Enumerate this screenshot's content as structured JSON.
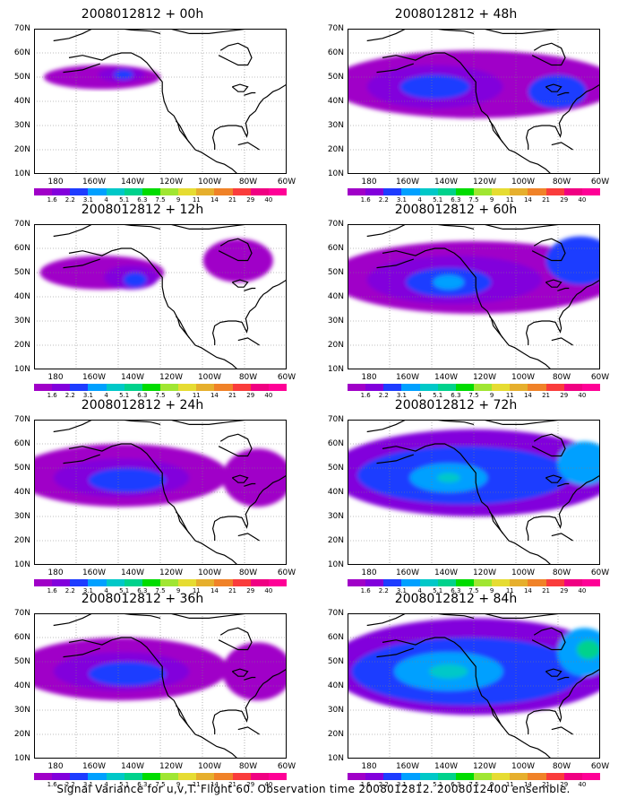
{
  "caption": "Signal Variance for u,v,T. Flight 60. Observation time 2008012812. 2008012400 ensemble.",
  "x_labels": [
    "180",
    "160W",
    "140W",
    "120W",
    "100W",
    "80W",
    "60W"
  ],
  "y_labels": [
    "70N",
    "60N",
    "50N",
    "40N",
    "30N",
    "20N",
    "10N"
  ],
  "colorbar": {
    "labels": [
      "1.6",
      "2.2",
      "3.1",
      "4",
      "5.1",
      "6.3",
      "7.5",
      "9",
      "11",
      "14",
      "21",
      "29",
      "40"
    ],
    "colors": [
      "#a000c8",
      "#8200dc",
      "#1e3cff",
      "#00a0ff",
      "#00c8c8",
      "#00d28c",
      "#00dc00",
      "#a0e632",
      "#e6dc32",
      "#e6af2d",
      "#f08228",
      "#fa3c3c",
      "#f00082",
      "#ff0096"
    ]
  },
  "map_colors": {
    "land_outline": "#000000",
    "grid": "#808080",
    "purple": "#a000c8",
    "violet": "#8200dc",
    "blue": "#1e3cff",
    "lightblue": "#00a0ff",
    "cyan": "#00c8c8",
    "green": "#00d28c"
  },
  "panels": [
    {
      "title": "2008012812 + 00h",
      "level": 1
    },
    {
      "title": "2008012812 + 48h",
      "level": 4
    },
    {
      "title": "2008012812 + 12h",
      "level": 2
    },
    {
      "title": "2008012812 + 60h",
      "level": 5
    },
    {
      "title": "2008012812 + 24h",
      "level": 3
    },
    {
      "title": "2008012812 + 72h",
      "level": 6
    },
    {
      "title": "2008012812 + 36h",
      "level": 3
    },
    {
      "title": "2008012812 + 84h",
      "level": 7
    }
  ]
}
